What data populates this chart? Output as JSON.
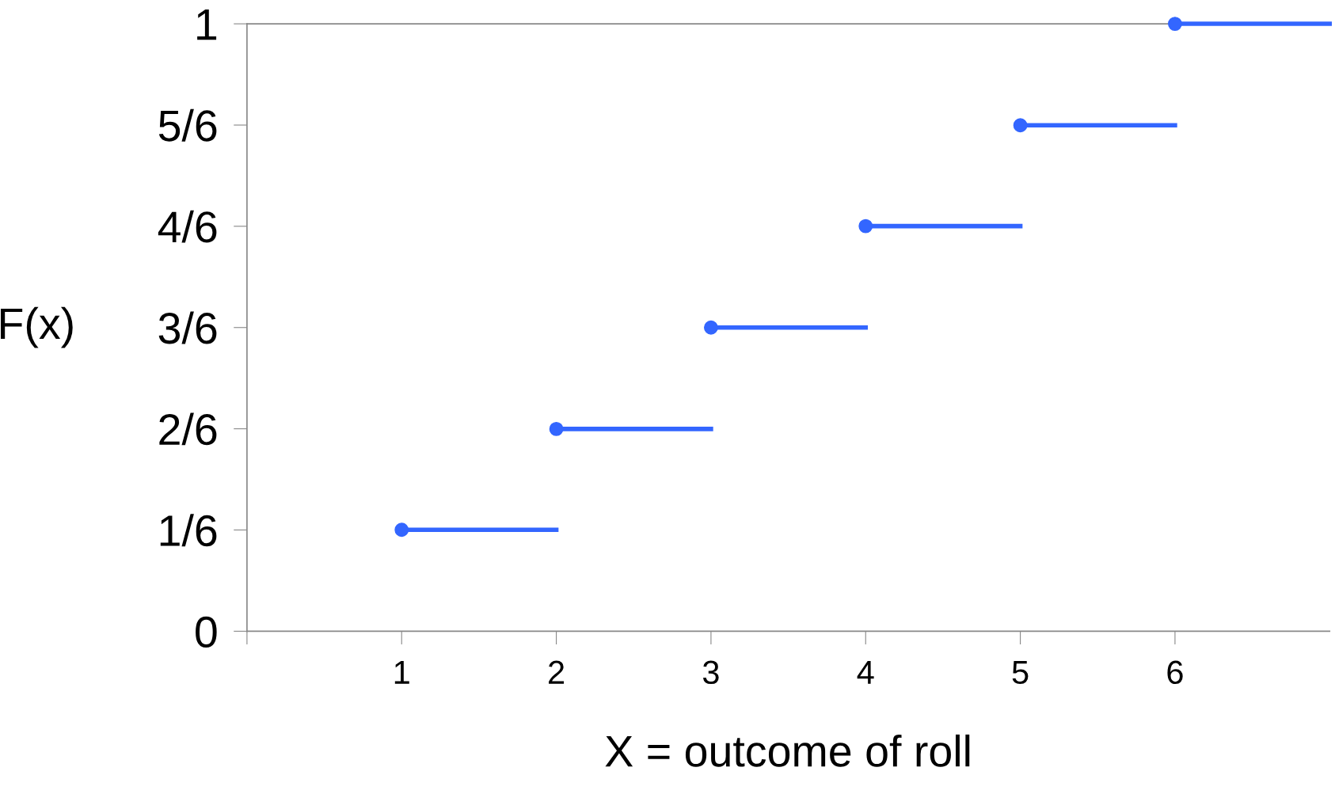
{
  "chart_data": {
    "type": "line",
    "xlabel": "X = outcome of roll",
    "ylabel": "F(x)",
    "xlim": [
      0,
      7
    ],
    "xticks": [
      {
        "value": 0,
        "label": null
      },
      1,
      2,
      3,
      4,
      5,
      6
    ],
    "ylim": [
      0,
      1
    ],
    "yticks": [
      0,
      {
        "value": 0.1667,
        "label": "1/6"
      },
      {
        "value": 0.3333,
        "label": "2/6"
      },
      {
        "value": 0.5,
        "label": "3/6"
      },
      {
        "value": 0.6667,
        "label": "4/6"
      },
      {
        "value": 0.8333,
        "label": "5/6"
      },
      1
    ],
    "grid": false,
    "legend": false,
    "series": [
      {
        "color": "#3366ff",
        "x": [
          1,
          2
        ],
        "values": [
          0.167,
          0.167
        ]
      },
      {
        "color": "#3366ff",
        "x": [
          2,
          3
        ],
        "values": [
          0.333,
          0.333
        ]
      },
      {
        "color": "#3366ff",
        "x": [
          3,
          4
        ],
        "values": [
          0.5,
          0.5
        ]
      },
      {
        "color": "#3366ff",
        "x": [
          4,
          5
        ],
        "values": [
          0.667,
          0.667
        ]
      },
      {
        "color": "#3366ff",
        "x": [
          5,
          6
        ],
        "values": [
          0.833,
          0.833
        ]
      },
      {
        "color": "#3366ff",
        "x": [
          6,
          7
        ],
        "values": [
          1,
          1
        ]
      },
      {
        "type": "scatter",
        "color": "#3366ff",
        "marker": "circle",
        "x": [
          1,
          2,
          3,
          4,
          5,
          6
        ],
        "values": [
          0.167,
          0.333,
          0.5,
          0.667,
          0.833,
          1
        ]
      }
    ]
  }
}
